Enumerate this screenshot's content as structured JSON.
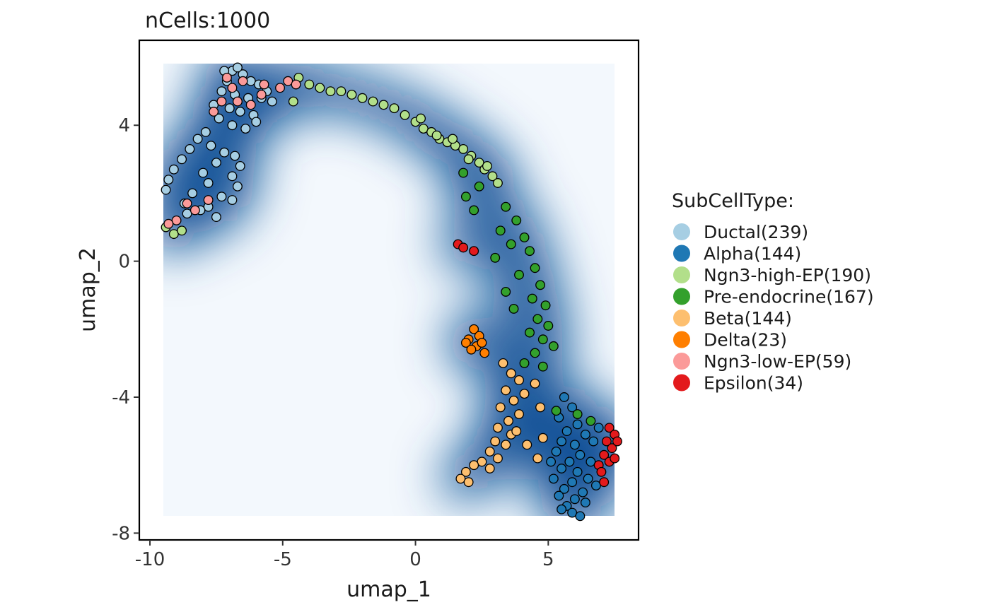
{
  "chart_data": {
    "type": "scatter",
    "title": "nCells:1000",
    "xlabel": "umap_1",
    "ylabel": "umap_2",
    "xlim": [
      -10.4,
      8.4
    ],
    "ylim": [
      -8.2,
      6.5
    ],
    "xticks": [
      -10,
      -5,
      0,
      5
    ],
    "xtick_labels": [
      "-10",
      "-5",
      "0",
      "5"
    ],
    "yticks": [
      -8,
      -4,
      0,
      4
    ],
    "ytick_labels": [
      "-8",
      "-4",
      "0",
      "4"
    ],
    "grid": false,
    "background": "2D density of all cells shown as a blue heatmap over x -9.5..7.5, y -7.5..5.8",
    "legend": {
      "title": "SubCellType:",
      "placement": "right"
    },
    "series": [
      {
        "name": "Ductal(239)",
        "color": "#A6CEE3",
        "points": [
          [
            -6.9,
            5.6
          ],
          [
            -6.5,
            5.5
          ],
          [
            -7.1,
            5.3
          ],
          [
            -6.2,
            5.3
          ],
          [
            -5.9,
            5.2
          ],
          [
            -7.3,
            5.0
          ],
          [
            -6.8,
            4.9
          ],
          [
            -6.3,
            4.8
          ],
          [
            -5.8,
            4.8
          ],
          [
            -7.6,
            4.6
          ],
          [
            -7.0,
            4.5
          ],
          [
            -6.6,
            4.4
          ],
          [
            -6.1,
            4.3
          ],
          [
            -7.4,
            4.2
          ],
          [
            -6.9,
            4.0
          ],
          [
            -6.4,
            3.9
          ],
          [
            -7.9,
            3.8
          ],
          [
            -8.2,
            3.6
          ],
          [
            -7.7,
            3.4
          ],
          [
            -8.5,
            3.3
          ],
          [
            -7.2,
            3.2
          ],
          [
            -6.8,
            3.1
          ],
          [
            -8.8,
            3.0
          ],
          [
            -7.5,
            2.9
          ],
          [
            -6.6,
            2.8
          ],
          [
            -9.1,
            2.7
          ],
          [
            -8.0,
            2.6
          ],
          [
            -6.9,
            2.5
          ],
          [
            -9.3,
            2.4
          ],
          [
            -7.8,
            2.3
          ],
          [
            -6.7,
            2.2
          ],
          [
            -9.4,
            2.1
          ],
          [
            -8.4,
            2.0
          ],
          [
            -7.3,
            1.9
          ],
          [
            -6.9,
            1.8
          ],
          [
            -8.7,
            1.7
          ],
          [
            -7.8,
            1.6
          ],
          [
            -8.1,
            1.5
          ],
          [
            -8.6,
            1.4
          ],
          [
            -7.5,
            1.3
          ],
          [
            -5.6,
            5.0
          ],
          [
            -5.4,
            4.7
          ],
          [
            -6.0,
            4.1
          ],
          [
            -7.2,
            5.6
          ],
          [
            -6.7,
            5.7
          ]
        ]
      },
      {
        "name": "Alpha(144)",
        "color": "#1F78B4",
        "points": [
          [
            5.6,
            -4.0
          ],
          [
            5.9,
            -4.3
          ],
          [
            5.4,
            -4.6
          ],
          [
            6.1,
            -4.8
          ],
          [
            5.7,
            -5.0
          ],
          [
            6.4,
            -5.1
          ],
          [
            5.5,
            -5.3
          ],
          [
            6.0,
            -5.4
          ],
          [
            6.7,
            -5.3
          ],
          [
            5.3,
            -5.6
          ],
          [
            6.2,
            -5.7
          ],
          [
            5.8,
            -5.9
          ],
          [
            6.6,
            -5.9
          ],
          [
            5.5,
            -6.1
          ],
          [
            6.1,
            -6.2
          ],
          [
            5.2,
            -6.4
          ],
          [
            5.9,
            -6.5
          ],
          [
            6.5,
            -6.4
          ],
          [
            5.6,
            -6.7
          ],
          [
            6.3,
            -6.8
          ],
          [
            5.4,
            -6.9
          ],
          [
            6.0,
            -7.0
          ],
          [
            5.7,
            -7.2
          ],
          [
            6.4,
            -7.1
          ],
          [
            5.9,
            -7.4
          ],
          [
            6.2,
            -7.5
          ],
          [
            5.5,
            -7.3
          ],
          [
            6.8,
            -6.6
          ],
          [
            5.1,
            -5.9
          ],
          [
            6.9,
            -4.9
          ]
        ]
      },
      {
        "name": "Ngn3-high-EP(190)",
        "color": "#B2DF8A",
        "points": [
          [
            -4.4,
            5.4
          ],
          [
            -4.0,
            5.2
          ],
          [
            -3.6,
            5.1
          ],
          [
            -3.2,
            5.0
          ],
          [
            -2.8,
            5.0
          ],
          [
            -2.4,
            4.9
          ],
          [
            -2.0,
            4.8
          ],
          [
            -1.6,
            4.7
          ],
          [
            -1.2,
            4.6
          ],
          [
            -0.8,
            4.5
          ],
          [
            -0.4,
            4.3
          ],
          [
            0.0,
            4.1
          ],
          [
            0.3,
            3.9
          ],
          [
            0.6,
            3.8
          ],
          [
            0.9,
            3.6
          ],
          [
            1.2,
            3.5
          ],
          [
            1.5,
            3.4
          ],
          [
            1.8,
            3.3
          ],
          [
            2.1,
            3.1
          ],
          [
            2.4,
            2.9
          ],
          [
            2.6,
            2.7
          ],
          [
            2.9,
            2.5
          ],
          [
            3.1,
            2.3
          ],
          [
            0.2,
            4.2
          ],
          [
            0.8,
            3.7
          ],
          [
            1.4,
            3.6
          ],
          [
            2.0,
            3.0
          ],
          [
            2.7,
            2.8
          ],
          [
            -4.6,
            4.7
          ],
          [
            -9.4,
            1.0
          ],
          [
            -9.1,
            0.8
          ],
          [
            -8.8,
            0.9
          ]
        ]
      },
      {
        "name": "Pre-endocrine(167)",
        "color": "#33A02C",
        "points": [
          [
            1.8,
            2.6
          ],
          [
            2.4,
            2.2
          ],
          [
            1.9,
            1.9
          ],
          [
            3.4,
            1.6
          ],
          [
            2.2,
            1.5
          ],
          [
            3.8,
            1.2
          ],
          [
            3.2,
            0.9
          ],
          [
            4.1,
            0.7
          ],
          [
            3.6,
            0.5
          ],
          [
            4.3,
            0.3
          ],
          [
            3.0,
            0.1
          ],
          [
            4.5,
            -0.2
          ],
          [
            3.9,
            -0.4
          ],
          [
            4.7,
            -0.7
          ],
          [
            3.4,
            -0.9
          ],
          [
            4.4,
            -1.1
          ],
          [
            4.9,
            -1.3
          ],
          [
            3.7,
            -1.4
          ],
          [
            4.6,
            -1.7
          ],
          [
            5.0,
            -1.9
          ],
          [
            4.3,
            -2.1
          ],
          [
            4.8,
            -2.3
          ],
          [
            5.2,
            -2.5
          ],
          [
            4.5,
            -2.7
          ],
          [
            4.1,
            -3.0
          ],
          [
            4.8,
            -3.1
          ],
          [
            6.1,
            -4.5
          ],
          [
            6.6,
            -4.7
          ],
          [
            5.3,
            -4.4
          ]
        ]
      },
      {
        "name": "Beta(144)",
        "color": "#FDBF6F",
        "points": [
          [
            3.3,
            -3.0
          ],
          [
            3.6,
            -3.3
          ],
          [
            3.9,
            -3.5
          ],
          [
            3.4,
            -3.8
          ],
          [
            4.1,
            -3.9
          ],
          [
            3.7,
            -4.1
          ],
          [
            3.2,
            -4.3
          ],
          [
            3.9,
            -4.5
          ],
          [
            3.5,
            -4.7
          ],
          [
            3.1,
            -4.9
          ],
          [
            3.6,
            -5.1
          ],
          [
            3.0,
            -5.3
          ],
          [
            3.4,
            -5.4
          ],
          [
            2.8,
            -5.6
          ],
          [
            3.1,
            -5.8
          ],
          [
            2.5,
            -5.9
          ],
          [
            2.8,
            -6.1
          ],
          [
            2.2,
            -6.0
          ],
          [
            1.9,
            -6.2
          ],
          [
            1.7,
            -6.4
          ],
          [
            2.0,
            -6.5
          ],
          [
            4.5,
            -3.6
          ],
          [
            4.7,
            -4.3
          ],
          [
            4.2,
            -5.4
          ],
          [
            4.8,
            -5.2
          ],
          [
            4.6,
            -5.8
          ],
          [
            3.8,
            -5.0
          ]
        ]
      },
      {
        "name": "Delta(23)",
        "color": "#FF7F00",
        "points": [
          [
            2.2,
            -2.0
          ],
          [
            2.4,
            -2.2
          ],
          [
            2.0,
            -2.3
          ],
          [
            2.3,
            -2.5
          ],
          [
            1.9,
            -2.4
          ],
          [
            2.1,
            -2.6
          ],
          [
            2.5,
            -2.4
          ],
          [
            2.6,
            -2.7
          ]
        ]
      },
      {
        "name": "Ngn3-low-EP(59)",
        "color": "#FB9A99",
        "points": [
          [
            -7.6,
            4.4
          ],
          [
            -6.9,
            5.1
          ],
          [
            -6.5,
            5.3
          ],
          [
            -6.2,
            4.6
          ],
          [
            -5.7,
            5.2
          ],
          [
            -5.1,
            5.1
          ],
          [
            -4.8,
            5.3
          ],
          [
            -4.5,
            5.2
          ],
          [
            -6.7,
            4.7
          ],
          [
            -7.1,
            5.4
          ],
          [
            -7.8,
            1.8
          ],
          [
            -8.6,
            1.7
          ],
          [
            -9.0,
            1.2
          ],
          [
            -9.3,
            1.1
          ],
          [
            -8.3,
            1.5
          ],
          [
            -5.8,
            4.9
          ],
          [
            -7.3,
            4.7
          ]
        ]
      },
      {
        "name": "Epsilon(34)",
        "color": "#E31A1C",
        "points": [
          [
            1.6,
            0.5
          ],
          [
            1.8,
            0.4
          ],
          [
            2.2,
            0.3
          ],
          [
            7.3,
            -4.9
          ],
          [
            7.5,
            -5.1
          ],
          [
            7.2,
            -5.3
          ],
          [
            7.4,
            -5.5
          ],
          [
            7.1,
            -5.7
          ],
          [
            7.3,
            -5.9
          ],
          [
            6.9,
            -6.0
          ],
          [
            7.0,
            -6.2
          ],
          [
            7.5,
            -5.8
          ],
          [
            7.6,
            -5.3
          ],
          [
            7.1,
            -6.5
          ]
        ]
      }
    ]
  }
}
